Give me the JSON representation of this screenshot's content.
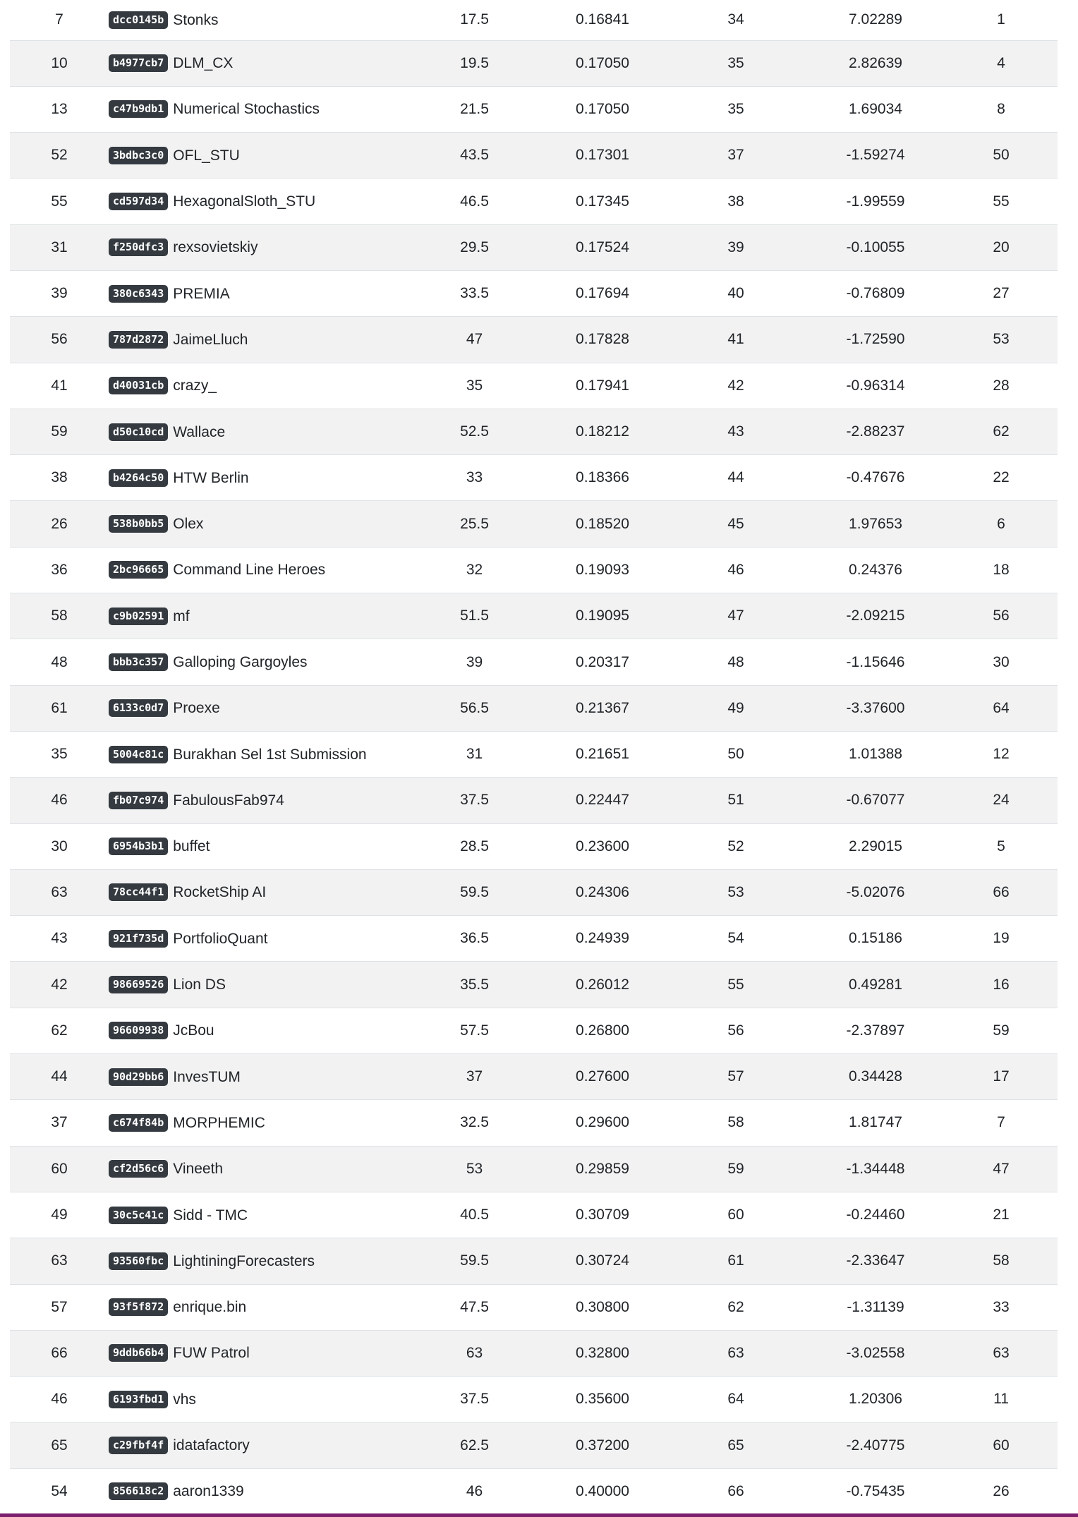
{
  "colors": {
    "row_stripe": "#f2f2f2",
    "badge_bg": "#343a40",
    "badge_text": "#ffffff",
    "bottom_bar": "#7b1f6e"
  },
  "rows": [
    {
      "c1": "7",
      "hash": "dcc0145b",
      "team": "Stonks",
      "c3": "17.5",
      "c4": "0.16841",
      "c5": "34",
      "c6": "7.02289",
      "c7": "1"
    },
    {
      "c1": "10",
      "hash": "b4977cb7",
      "team": "DLM_CX",
      "c3": "19.5",
      "c4": "0.17050",
      "c5": "35",
      "c6": "2.82639",
      "c7": "4"
    },
    {
      "c1": "13",
      "hash": "c47b9db1",
      "team": "Numerical Stochastics",
      "c3": "21.5",
      "c4": "0.17050",
      "c5": "35",
      "c6": "1.69034",
      "c7": "8"
    },
    {
      "c1": "52",
      "hash": "3bdbc3c0",
      "team": "OFL_STU",
      "c3": "43.5",
      "c4": "0.17301",
      "c5": "37",
      "c6": "-1.59274",
      "c7": "50"
    },
    {
      "c1": "55",
      "hash": "cd597d34",
      "team": "HexagonalSloth_STU",
      "c3": "46.5",
      "c4": "0.17345",
      "c5": "38",
      "c6": "-1.99559",
      "c7": "55"
    },
    {
      "c1": "31",
      "hash": "f250dfc3",
      "team": "rexsovietskiy",
      "c3": "29.5",
      "c4": "0.17524",
      "c5": "39",
      "c6": "-0.10055",
      "c7": "20"
    },
    {
      "c1": "39",
      "hash": "380c6343",
      "team": "PREMIA",
      "c3": "33.5",
      "c4": "0.17694",
      "c5": "40",
      "c6": "-0.76809",
      "c7": "27"
    },
    {
      "c1": "56",
      "hash": "787d2872",
      "team": "JaimeLluch",
      "c3": "47",
      "c4": "0.17828",
      "c5": "41",
      "c6": "-1.72590",
      "c7": "53"
    },
    {
      "c1": "41",
      "hash": "d40031cb",
      "team": "crazy_",
      "c3": "35",
      "c4": "0.17941",
      "c5": "42",
      "c6": "-0.96314",
      "c7": "28"
    },
    {
      "c1": "59",
      "hash": "d50c10cd",
      "team": "Wallace",
      "c3": "52.5",
      "c4": "0.18212",
      "c5": "43",
      "c6": "-2.88237",
      "c7": "62"
    },
    {
      "c1": "38",
      "hash": "b4264c50",
      "team": "HTW Berlin",
      "c3": "33",
      "c4": "0.18366",
      "c5": "44",
      "c6": "-0.47676",
      "c7": "22"
    },
    {
      "c1": "26",
      "hash": "538b0bb5",
      "team": "Olex",
      "c3": "25.5",
      "c4": "0.18520",
      "c5": "45",
      "c6": "1.97653",
      "c7": "6"
    },
    {
      "c1": "36",
      "hash": "2bc96665",
      "team": "Command Line Heroes",
      "c3": "32",
      "c4": "0.19093",
      "c5": "46",
      "c6": "0.24376",
      "c7": "18"
    },
    {
      "c1": "58",
      "hash": "c9b02591",
      "team": "mf",
      "c3": "51.5",
      "c4": "0.19095",
      "c5": "47",
      "c6": "-2.09215",
      "c7": "56"
    },
    {
      "c1": "48",
      "hash": "bbb3c357",
      "team": "Galloping Gargoyles",
      "c3": "39",
      "c4": "0.20317",
      "c5": "48",
      "c6": "-1.15646",
      "c7": "30"
    },
    {
      "c1": "61",
      "hash": "6133c0d7",
      "team": "Proexe",
      "c3": "56.5",
      "c4": "0.21367",
      "c5": "49",
      "c6": "-3.37600",
      "c7": "64"
    },
    {
      "c1": "35",
      "hash": "5004c81c",
      "team": "Burakhan Sel 1st Submission",
      "c3": "31",
      "c4": "0.21651",
      "c5": "50",
      "c6": "1.01388",
      "c7": "12"
    },
    {
      "c1": "46",
      "hash": "fb07c974",
      "team": "FabulousFab974",
      "c3": "37.5",
      "c4": "0.22447",
      "c5": "51",
      "c6": "-0.67077",
      "c7": "24"
    },
    {
      "c1": "30",
      "hash": "6954b3b1",
      "team": "buffet",
      "c3": "28.5",
      "c4": "0.23600",
      "c5": "52",
      "c6": "2.29015",
      "c7": "5"
    },
    {
      "c1": "63",
      "hash": "78cc44f1",
      "team": "RocketShip AI",
      "c3": "59.5",
      "c4": "0.24306",
      "c5": "53",
      "c6": "-5.02076",
      "c7": "66"
    },
    {
      "c1": "43",
      "hash": "921f735d",
      "team": "PortfolioQuant",
      "c3": "36.5",
      "c4": "0.24939",
      "c5": "54",
      "c6": "0.15186",
      "c7": "19"
    },
    {
      "c1": "42",
      "hash": "98669526",
      "team": "Lion DS",
      "c3": "35.5",
      "c4": "0.26012",
      "c5": "55",
      "c6": "0.49281",
      "c7": "16"
    },
    {
      "c1": "62",
      "hash": "96609938",
      "team": "JcBou",
      "c3": "57.5",
      "c4": "0.26800",
      "c5": "56",
      "c6": "-2.37897",
      "c7": "59"
    },
    {
      "c1": "44",
      "hash": "90d29bb6",
      "team": "InvesTUM",
      "c3": "37",
      "c4": "0.27600",
      "c5": "57",
      "c6": "0.34428",
      "c7": "17"
    },
    {
      "c1": "37",
      "hash": "c674f84b",
      "team": "MORPHEMIC",
      "c3": "32.5",
      "c4": "0.29600",
      "c5": "58",
      "c6": "1.81747",
      "c7": "7"
    },
    {
      "c1": "60",
      "hash": "cf2d56c6",
      "team": "Vineeth",
      "c3": "53",
      "c4": "0.29859",
      "c5": "59",
      "c6": "-1.34448",
      "c7": "47"
    },
    {
      "c1": "49",
      "hash": "30c5c41c",
      "team": "Sidd - TMC",
      "c3": "40.5",
      "c4": "0.30709",
      "c5": "60",
      "c6": "-0.24460",
      "c7": "21"
    },
    {
      "c1": "63",
      "hash": "93560fbc",
      "team": "LightiningForecasters",
      "c3": "59.5",
      "c4": "0.30724",
      "c5": "61",
      "c6": "-2.33647",
      "c7": "58"
    },
    {
      "c1": "57",
      "hash": "93f5f872",
      "team": "enrique.bin",
      "c3": "47.5",
      "c4": "0.30800",
      "c5": "62",
      "c6": "-1.31139",
      "c7": "33"
    },
    {
      "c1": "66",
      "hash": "9ddb66b4",
      "team": "FUW Patrol",
      "c3": "63",
      "c4": "0.32800",
      "c5": "63",
      "c6": "-3.02558",
      "c7": "63"
    },
    {
      "c1": "46",
      "hash": "6193fbd1",
      "team": "vhs",
      "c3": "37.5",
      "c4": "0.35600",
      "c5": "64",
      "c6": "1.20306",
      "c7": "11"
    },
    {
      "c1": "65",
      "hash": "c29fbf4f",
      "team": "idatafactory",
      "c3": "62.5",
      "c4": "0.37200",
      "c5": "65",
      "c6": "-2.40775",
      "c7": "60"
    },
    {
      "c1": "54",
      "hash": "856618c2",
      "team": "aaron1339",
      "c3": "46",
      "c4": "0.40000",
      "c5": "66",
      "c6": "-0.75435",
      "c7": "26"
    }
  ]
}
